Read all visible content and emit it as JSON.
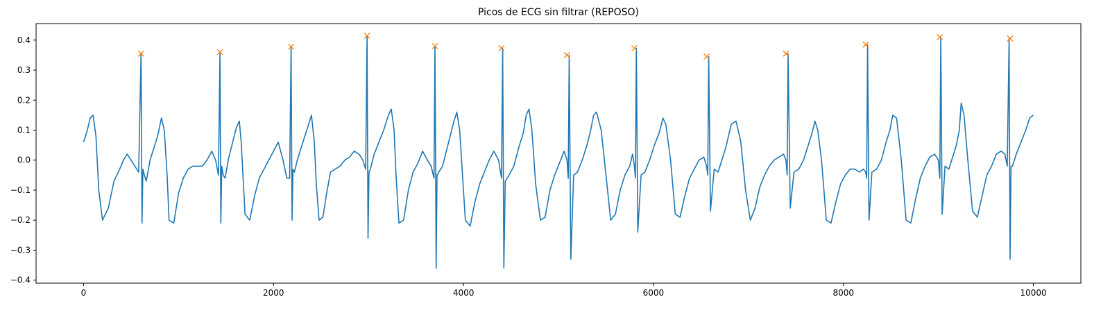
{
  "chart_data": {
    "type": "line",
    "title": "Picos de ECG sin filtrar (REPOSO)",
    "xlabel": "",
    "ylabel": "",
    "xlim": [
      -500,
      10500
    ],
    "ylim": [
      -0.41,
      0.455
    ],
    "grid": false,
    "x_ticks": [
      0,
      2000,
      4000,
      6000,
      8000,
      10000
    ],
    "x_tick_labels": [
      "0",
      "2000",
      "4000",
      "6000",
      "8000",
      "10000"
    ],
    "y_ticks": [
      -0.4,
      -0.3,
      -0.2,
      -0.1,
      0.0,
      0.1,
      0.2,
      0.3,
      0.4
    ],
    "y_tick_labels": [
      "−0.4",
      "−0.3",
      "−0.2",
      "−0.1",
      "0.0",
      "0.1",
      "0.2",
      "0.3",
      "0.4"
    ],
    "series": [
      {
        "kind": "line",
        "color": "#1f77b4",
        "x": [
          0,
          40,
          70,
          100,
          130,
          160,
          200,
          260,
          320,
          380,
          420,
          460,
          500,
          540,
          580,
          605,
          615,
          625,
          640,
          660,
          700,
          740,
          780,
          820,
          850,
          880,
          900,
          950,
          1000,
          1050,
          1100,
          1150,
          1200,
          1250,
          1300,
          1350,
          1390,
          1420,
          1436,
          1445,
          1455,
          1470,
          1490,
          1530,
          1570,
          1610,
          1640,
          1660,
          1700,
          1750,
          1800,
          1850,
          1900,
          1950,
          2000,
          2050,
          2100,
          2140,
          2170,
          2185,
          2195,
          2205,
          2220,
          2250,
          2300,
          2350,
          2400,
          2430,
          2450,
          2480,
          2520,
          2560,
          2600,
          2650,
          2700,
          2750,
          2800,
          2850,
          2900,
          2940,
          2970,
          2985,
          2995,
          3005,
          3020,
          3060,
          3110,
          3160,
          3210,
          3240,
          3270,
          3290,
          3320,
          3370,
          3420,
          3470,
          3520,
          3570,
          3620,
          3660,
          3690,
          3700,
          3712,
          3722,
          3740,
          3780,
          3820,
          3860,
          3900,
          3930,
          3960,
          3990,
          4020,
          4070,
          4120,
          4170,
          4220,
          4270,
          4320,
          4370,
          4400,
          4413,
          4425,
          4440,
          4480,
          4530,
          4580,
          4630,
          4660,
          4690,
          4720,
          4760,
          4810,
          4860,
          4910,
          4960,
          5010,
          5060,
          5090,
          5103,
          5113,
          5130,
          5160,
          5200,
          5250,
          5300,
          5340,
          5370,
          5400,
          5450,
          5500,
          5550,
          5600,
          5650,
          5700,
          5750,
          5780,
          5800,
          5810,
          5820,
          5835,
          5870,
          5910,
          5960,
          6010,
          6060,
          6100,
          6130,
          6180,
          6230,
          6280,
          6330,
          6380,
          6430,
          6480,
          6530,
          6560,
          6572,
          6582,
          6600,
          6640,
          6680,
          6720,
          6760,
          6790,
          6820,
          6870,
          6920,
          6970,
          7020,
          7070,
          7120,
          7170,
          7220,
          7270,
          7320,
          7370,
          7395,
          7408,
          7418,
          7440,
          7480,
          7530,
          7580,
          7630,
          7670,
          7700,
          7730,
          7770,
          7820,
          7870,
          7920,
          7970,
          8020,
          8070,
          8120,
          8170,
          8210,
          8235,
          8245,
          8255,
          8270,
          8300,
          8350,
          8400,
          8450,
          8490,
          8520,
          8560,
          8610,
          8660,
          8710,
          8760,
          8810,
          8860,
          8910,
          8960,
          9000,
          9015,
          9025,
          9040,
          9070,
          9110,
          9150,
          9190,
          9220,
          9240,
          9270,
          9310,
          9360,
          9410,
          9460,
          9510,
          9560,
          9610,
          9660,
          9700,
          9725,
          9745,
          9755,
          9765,
          9780,
          9820,
          9870,
          9920,
          9960,
          10000
        ],
        "y": [
          0.06,
          0.1,
          0.14,
          0.15,
          0.08,
          -0.1,
          -0.2,
          -0.16,
          -0.07,
          -0.03,
          0.0,
          0.02,
          0.0,
          -0.02,
          -0.04,
          0.355,
          -0.21,
          -0.03,
          -0.05,
          -0.07,
          0.0,
          0.04,
          0.08,
          0.14,
          0.1,
          -0.05,
          -0.2,
          -0.21,
          -0.11,
          -0.06,
          -0.03,
          -0.02,
          -0.02,
          -0.02,
          0.0,
          0.03,
          0.0,
          -0.05,
          0.36,
          -0.21,
          -0.02,
          -0.05,
          -0.06,
          0.01,
          0.06,
          0.11,
          0.13,
          0.06,
          -0.18,
          -0.2,
          -0.12,
          -0.06,
          -0.03,
          0.0,
          0.03,
          0.06,
          0.0,
          -0.06,
          -0.06,
          0.378,
          -0.2,
          -0.03,
          -0.04,
          0.0,
          0.05,
          0.1,
          0.15,
          0.06,
          -0.08,
          -0.2,
          -0.19,
          -0.11,
          -0.04,
          -0.03,
          -0.02,
          0.0,
          0.01,
          0.03,
          0.02,
          0.0,
          -0.03,
          0.415,
          -0.26,
          -0.04,
          -0.03,
          0.02,
          0.06,
          0.1,
          0.15,
          0.17,
          0.1,
          -0.05,
          -0.21,
          -0.2,
          -0.1,
          -0.04,
          -0.01,
          0.03,
          0.0,
          -0.02,
          -0.06,
          0.38,
          -0.36,
          -0.05,
          -0.04,
          -0.02,
          0.03,
          0.08,
          0.13,
          0.16,
          0.1,
          -0.05,
          -0.2,
          -0.22,
          -0.14,
          -0.08,
          -0.04,
          0.0,
          0.03,
          0.0,
          -0.06,
          0.373,
          -0.36,
          -0.07,
          -0.05,
          -0.02,
          0.04,
          0.09,
          0.15,
          0.17,
          0.1,
          -0.08,
          -0.2,
          -0.19,
          -0.1,
          -0.05,
          -0.01,
          0.03,
          0.0,
          -0.06,
          0.35,
          -0.33,
          -0.05,
          -0.04,
          0.0,
          0.05,
          0.1,
          0.15,
          0.16,
          0.1,
          -0.05,
          -0.2,
          -0.18,
          -0.1,
          -0.05,
          -0.02,
          0.02,
          -0.02,
          -0.06,
          0.373,
          -0.24,
          -0.05,
          -0.04,
          0.0,
          0.05,
          0.09,
          0.14,
          0.12,
          0.0,
          -0.18,
          -0.19,
          -0.12,
          -0.06,
          -0.03,
          0.0,
          0.01,
          -0.02,
          -0.05,
          0.345,
          -0.17,
          -0.03,
          -0.04,
          0.0,
          0.04,
          0.08,
          0.12,
          0.13,
          0.06,
          -0.1,
          -0.2,
          -0.16,
          -0.09,
          -0.05,
          -0.02,
          0.0,
          0.01,
          0.02,
          0.0,
          -0.05,
          0.355,
          -0.16,
          -0.04,
          -0.03,
          0.0,
          0.05,
          0.09,
          0.13,
          0.1,
          0.0,
          -0.2,
          -0.21,
          -0.14,
          -0.08,
          -0.05,
          -0.03,
          -0.03,
          -0.04,
          -0.03,
          -0.04,
          -0.06,
          0.385,
          -0.2,
          -0.04,
          -0.03,
          0.0,
          0.06,
          0.1,
          0.15,
          0.14,
          0.0,
          -0.2,
          -0.21,
          -0.13,
          -0.06,
          -0.02,
          0.01,
          0.02,
          0.0,
          -0.06,
          0.41,
          -0.18,
          -0.02,
          -0.03,
          0.01,
          0.05,
          0.1,
          0.19,
          0.15,
          0.0,
          -0.17,
          -0.19,
          -0.12,
          -0.05,
          -0.02,
          0.02,
          0.03,
          0.02,
          -0.02,
          0.405,
          -0.33,
          -0.02,
          -0.02,
          0.02,
          0.06,
          0.1,
          0.14,
          0.15
        ]
      },
      {
        "kind": "markers",
        "marker": "x",
        "color": "#ff7f0e",
        "x": [
          605,
          1436,
          2185,
          2985,
          3700,
          4400,
          5090,
          5800,
          6560,
          7395,
          8235,
          9015,
          9755
        ],
        "y": [
          0.355,
          0.36,
          0.378,
          0.415,
          0.38,
          0.373,
          0.35,
          0.373,
          0.345,
          0.355,
          0.385,
          0.41,
          0.405
        ]
      }
    ]
  }
}
